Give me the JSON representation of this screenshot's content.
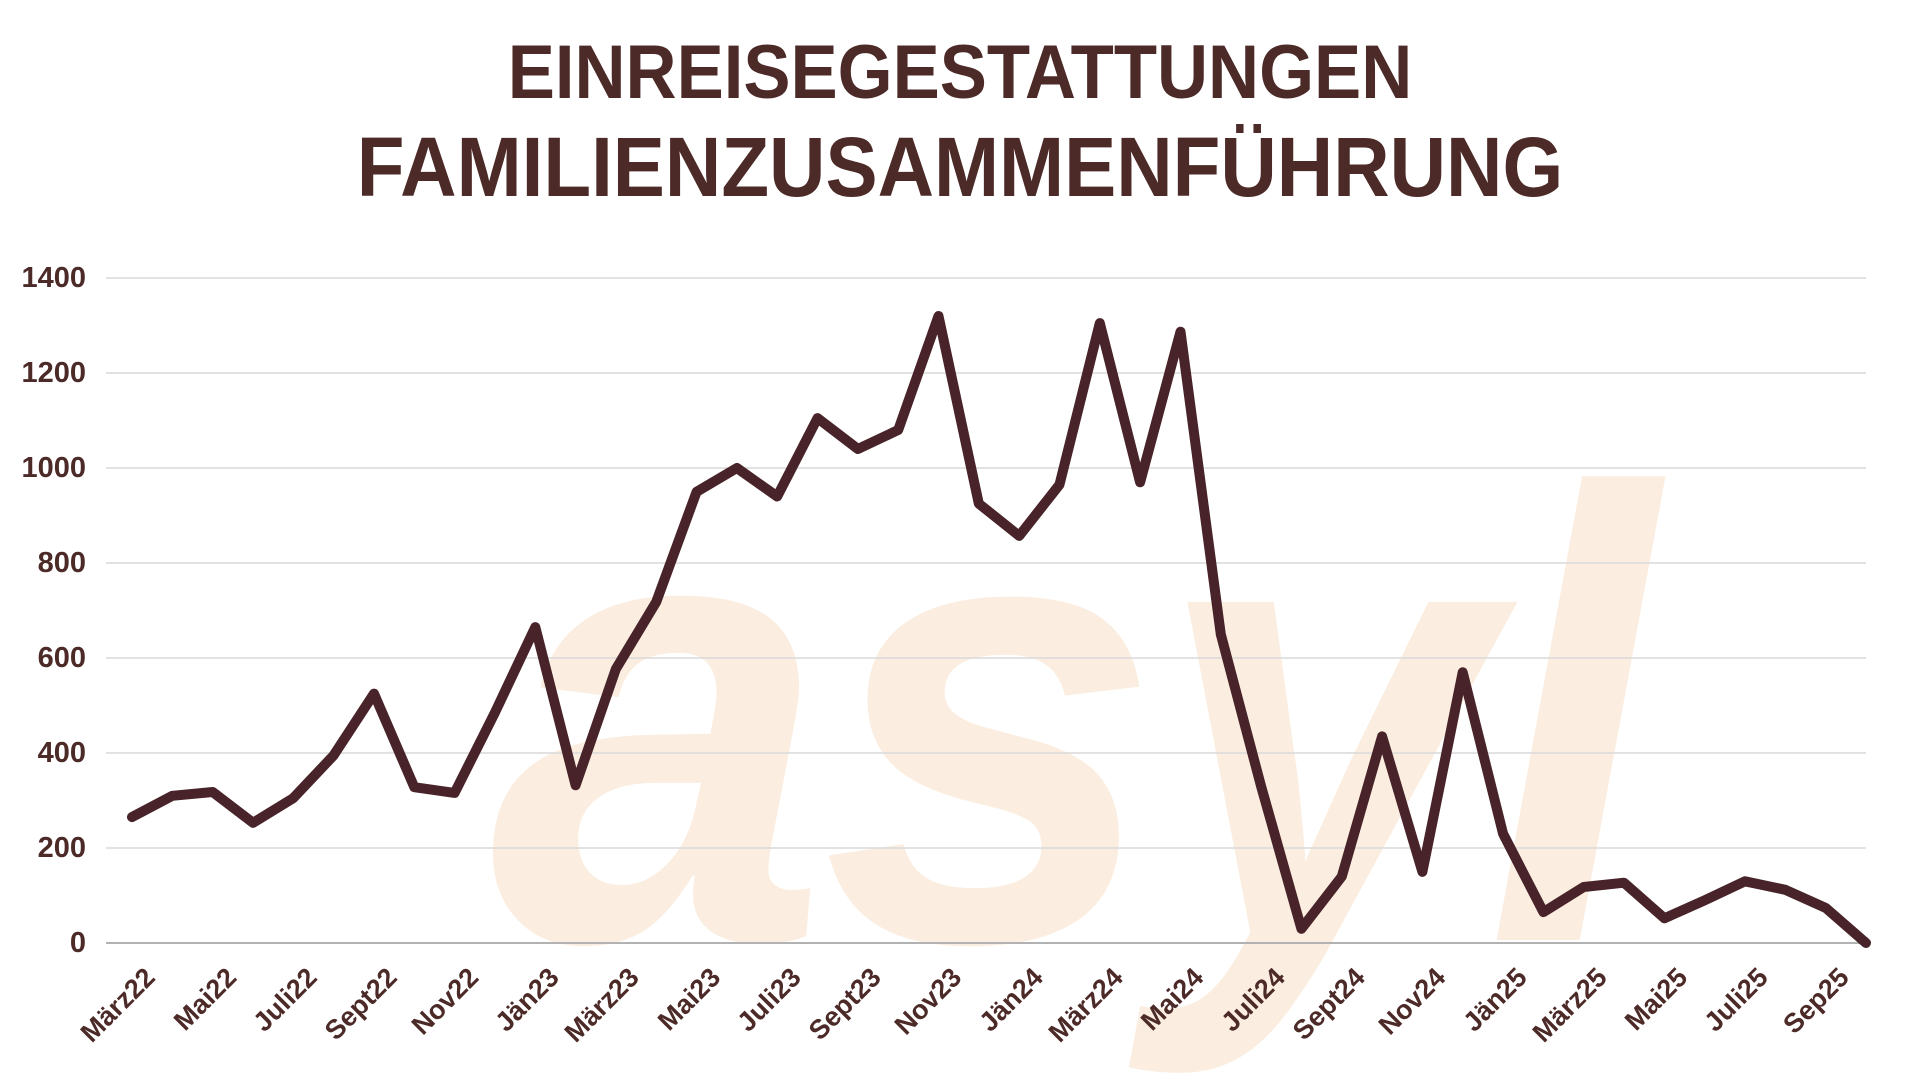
{
  "title": {
    "line1": "EINREISEGESTATTUNGEN",
    "line2": "FAMILIENZUSAMMENFÜHRUNG"
  },
  "watermark": {
    "text": "asyl"
  },
  "colors": {
    "text": "#4c2a28",
    "line": "#482329",
    "gridline": "#d9d9d9",
    "axis_line": "#b2b2b2",
    "watermark": "#fbeee0",
    "background": "#ffffff"
  },
  "chart_data": {
    "type": "line",
    "title": "EINREISEGESTATTUNGEN FAMILIENZUSAMMENFÜHRUNG",
    "xlabel": "",
    "ylabel": "",
    "legend": "none",
    "grid": "horizontal",
    "y_ticks": [
      0,
      200,
      400,
      600,
      800,
      1000,
      1200,
      1400
    ],
    "ylim": [
      0,
      1450
    ],
    "x_tick_labels": [
      "März22",
      "Mai22",
      "Juli22",
      "Sept22",
      "Nov22",
      "Jän23",
      "März23",
      "Mai23",
      "Juli23",
      "Sept23",
      "Nov23",
      "Jän24",
      "März24",
      "Mai24",
      "Juli24",
      "Sept24",
      "Nov24",
      "Jän25",
      "März25",
      "Mai25",
      "Juli25",
      "Sep25"
    ],
    "tick_every_n_points": 2,
    "values": [
      265,
      310,
      318,
      253,
      305,
      395,
      525,
      328,
      316,
      485,
      665,
      332,
      577,
      718,
      950,
      1000,
      940,
      1105,
      1040,
      1080,
      1320,
      925,
      857,
      965,
      1305,
      970,
      1287,
      650,
      330,
      30,
      140,
      435,
      150,
      570,
      230,
      65,
      118,
      127,
      52,
      90,
      130,
      112,
      74,
      0
    ]
  }
}
